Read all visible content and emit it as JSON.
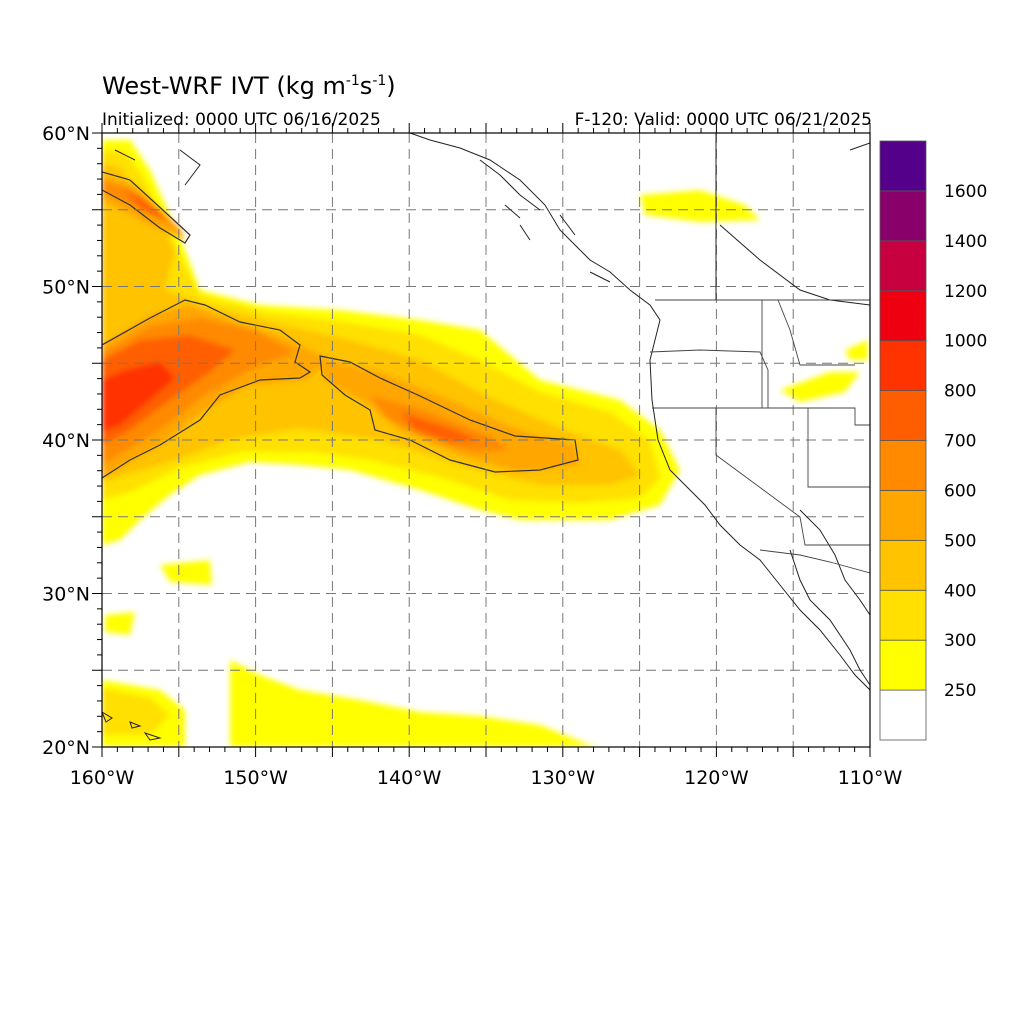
{
  "title": {
    "text": "West-WRF IVT (kg m",
    "exp1": "-1",
    "mid": "s",
    "exp2": "-1",
    "close": ")"
  },
  "init_label": "Initialized: 0000 UTC 06/16/2025",
  "valid_label": "F-120: Valid: 0000 UTC 06/21/2025",
  "map": {
    "lon_range": [
      -160,
      -110
    ],
    "lat_range": [
      20,
      60
    ],
    "grid": "dashed",
    "lon_ticks": [
      {
        "value": -160,
        "label": "160°W"
      },
      {
        "value": -150,
        "label": "150°W"
      },
      {
        "value": -140,
        "label": "140°W"
      },
      {
        "value": -130,
        "label": "130°W"
      },
      {
        "value": -120,
        "label": "120°W"
      },
      {
        "value": -110,
        "label": "110°W"
      }
    ],
    "lat_ticks": [
      {
        "value": 60,
        "label": "60°N"
      },
      {
        "value": 50,
        "label": "50°N"
      },
      {
        "value": 40,
        "label": "40°N"
      },
      {
        "value": 30,
        "label": "30°N"
      },
      {
        "value": 20,
        "label": "20°N"
      }
    ],
    "contour_line_value": 500
  },
  "colorbar": {
    "levels": [
      250,
      300,
      400,
      500,
      600,
      700,
      800,
      1000,
      1200,
      1400,
      1600
    ],
    "colors": [
      "#ffffff",
      "#ffff00",
      "#ffe000",
      "#ffc300",
      "#ffa600",
      "#ff8a00",
      "#ff5e00",
      "#ff3300",
      "#ee0010",
      "#c7003f",
      "#8a006a",
      "#55008a"
    ],
    "labels": [
      "250",
      "300",
      "400",
      "500",
      "600",
      "700",
      "800",
      "1000",
      "1200",
      "1400",
      "1600"
    ]
  }
}
